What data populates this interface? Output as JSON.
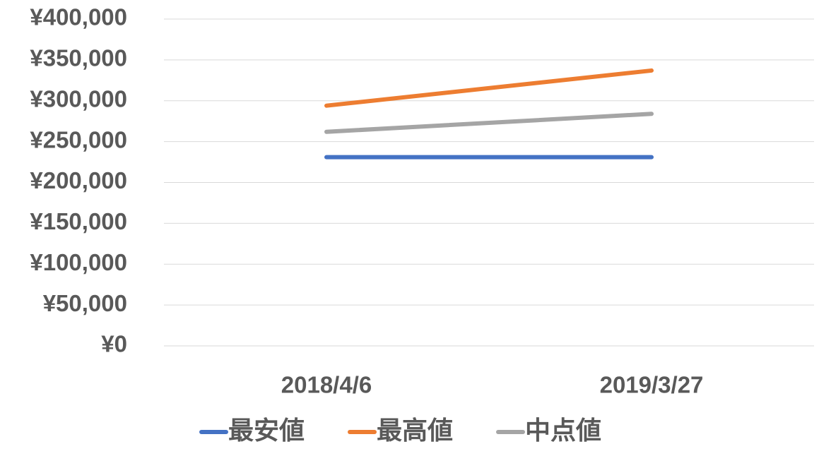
{
  "chart_data": {
    "type": "line",
    "categories": [
      "2018/4/6",
      "2019/3/27"
    ],
    "series": [
      {
        "name": "最安値",
        "color": "#4472c4",
        "values": [
          231000,
          231000
        ]
      },
      {
        "name": "最高値",
        "color": "#ed7d31",
        "values": [
          294000,
          337000
        ]
      },
      {
        "name": "中点値",
        "color": "#a5a5a5",
        "values": [
          262000,
          284000
        ]
      }
    ],
    "ylim": [
      0,
      400000
    ],
    "yticks": [
      {
        "value": 0,
        "label": "¥0"
      },
      {
        "value": 50000,
        "label": "¥50,000"
      },
      {
        "value": 100000,
        "label": "¥100,000"
      },
      {
        "value": 150000,
        "label": "¥150,000"
      },
      {
        "value": 200000,
        "label": "¥200,000"
      },
      {
        "value": 250000,
        "label": "¥250,000"
      },
      {
        "value": 300000,
        "label": "¥300,000"
      },
      {
        "value": 350000,
        "label": "¥350,000"
      },
      {
        "value": 400000,
        "label": "¥400,000"
      }
    ],
    "grid": true
  }
}
